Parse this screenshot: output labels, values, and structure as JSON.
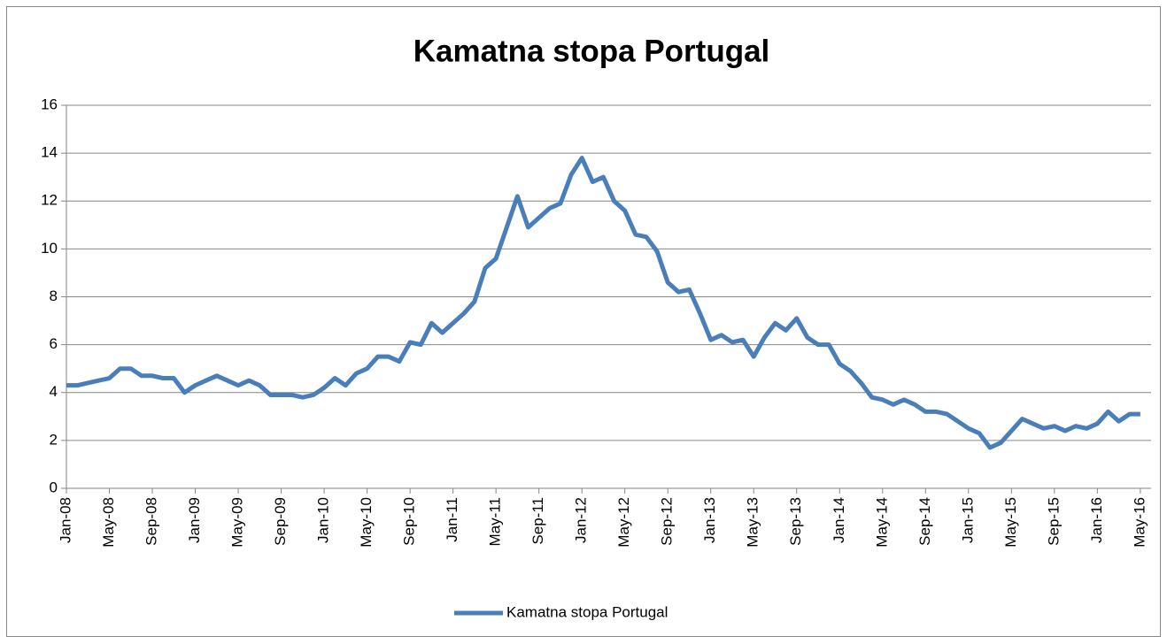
{
  "chart_data": {
    "type": "line",
    "title": "Kamatna stopa Portugal",
    "categories": [
      "Jan-08",
      null,
      null,
      null,
      "May-08",
      null,
      null,
      null,
      "Sep-08",
      null,
      null,
      null,
      "Jan-09",
      null,
      null,
      null,
      "May-09",
      null,
      null,
      null,
      "Sep-09",
      null,
      null,
      null,
      "Jan-10",
      null,
      null,
      null,
      "May-10",
      null,
      null,
      null,
      "Sep-10",
      null,
      null,
      null,
      "Jan-11",
      null,
      null,
      null,
      "May-11",
      null,
      null,
      null,
      "Sep-11",
      null,
      null,
      null,
      "Jan-12",
      null,
      null,
      null,
      "May-12",
      null,
      null,
      null,
      "Sep-12",
      null,
      null,
      null,
      "Jan-13",
      null,
      null,
      null,
      "May-13",
      null,
      null,
      null,
      "Sep-13",
      null,
      null,
      null,
      "Jan-14",
      null,
      null,
      null,
      "May-14",
      null,
      null,
      null,
      "Sep-14",
      null,
      null,
      null,
      "Jan-15",
      null,
      null,
      null,
      "May-15",
      null,
      null,
      null,
      "Sep-15",
      null,
      null,
      null,
      "Jan-16",
      null,
      null,
      null,
      "May-16"
    ],
    "series": [
      {
        "name": "Kamatna stopa Portugal",
        "color": "#4a7ebb",
        "values": [
          4.3,
          4.3,
          4.4,
          4.5,
          4.6,
          5.0,
          5.0,
          4.7,
          4.7,
          4.6,
          4.6,
          4.0,
          4.3,
          4.5,
          4.7,
          4.5,
          4.3,
          4.5,
          4.3,
          3.9,
          3.9,
          3.9,
          3.8,
          3.9,
          4.2,
          4.6,
          4.3,
          4.8,
          5.0,
          5.5,
          5.5,
          5.3,
          6.1,
          6.0,
          6.9,
          6.5,
          6.9,
          7.3,
          7.8,
          9.2,
          9.6,
          10.9,
          12.2,
          10.9,
          11.3,
          11.7,
          11.9,
          13.1,
          13.8,
          12.8,
          13.0,
          12.0,
          11.6,
          10.6,
          10.5,
          9.9,
          8.6,
          8.2,
          8.3,
          7.3,
          6.2,
          6.4,
          6.1,
          6.2,
          5.5,
          6.3,
          6.9,
          6.6,
          7.1,
          6.3,
          6.0,
          6.0,
          5.2,
          4.9,
          4.4,
          3.8,
          3.7,
          3.5,
          3.7,
          3.5,
          3.2,
          3.2,
          3.1,
          2.8,
          2.5,
          2.3,
          1.7,
          1.9,
          2.4,
          2.9,
          2.7,
          2.5,
          2.6,
          2.4,
          2.6,
          2.5,
          2.7,
          3.2,
          2.8,
          3.1,
          3.1
        ]
      }
    ],
    "ylim": [
      0,
      16
    ],
    "yticks": [
      0,
      2,
      4,
      6,
      8,
      10,
      12,
      14,
      16
    ],
    "grid": true,
    "legend": "bottom"
  }
}
